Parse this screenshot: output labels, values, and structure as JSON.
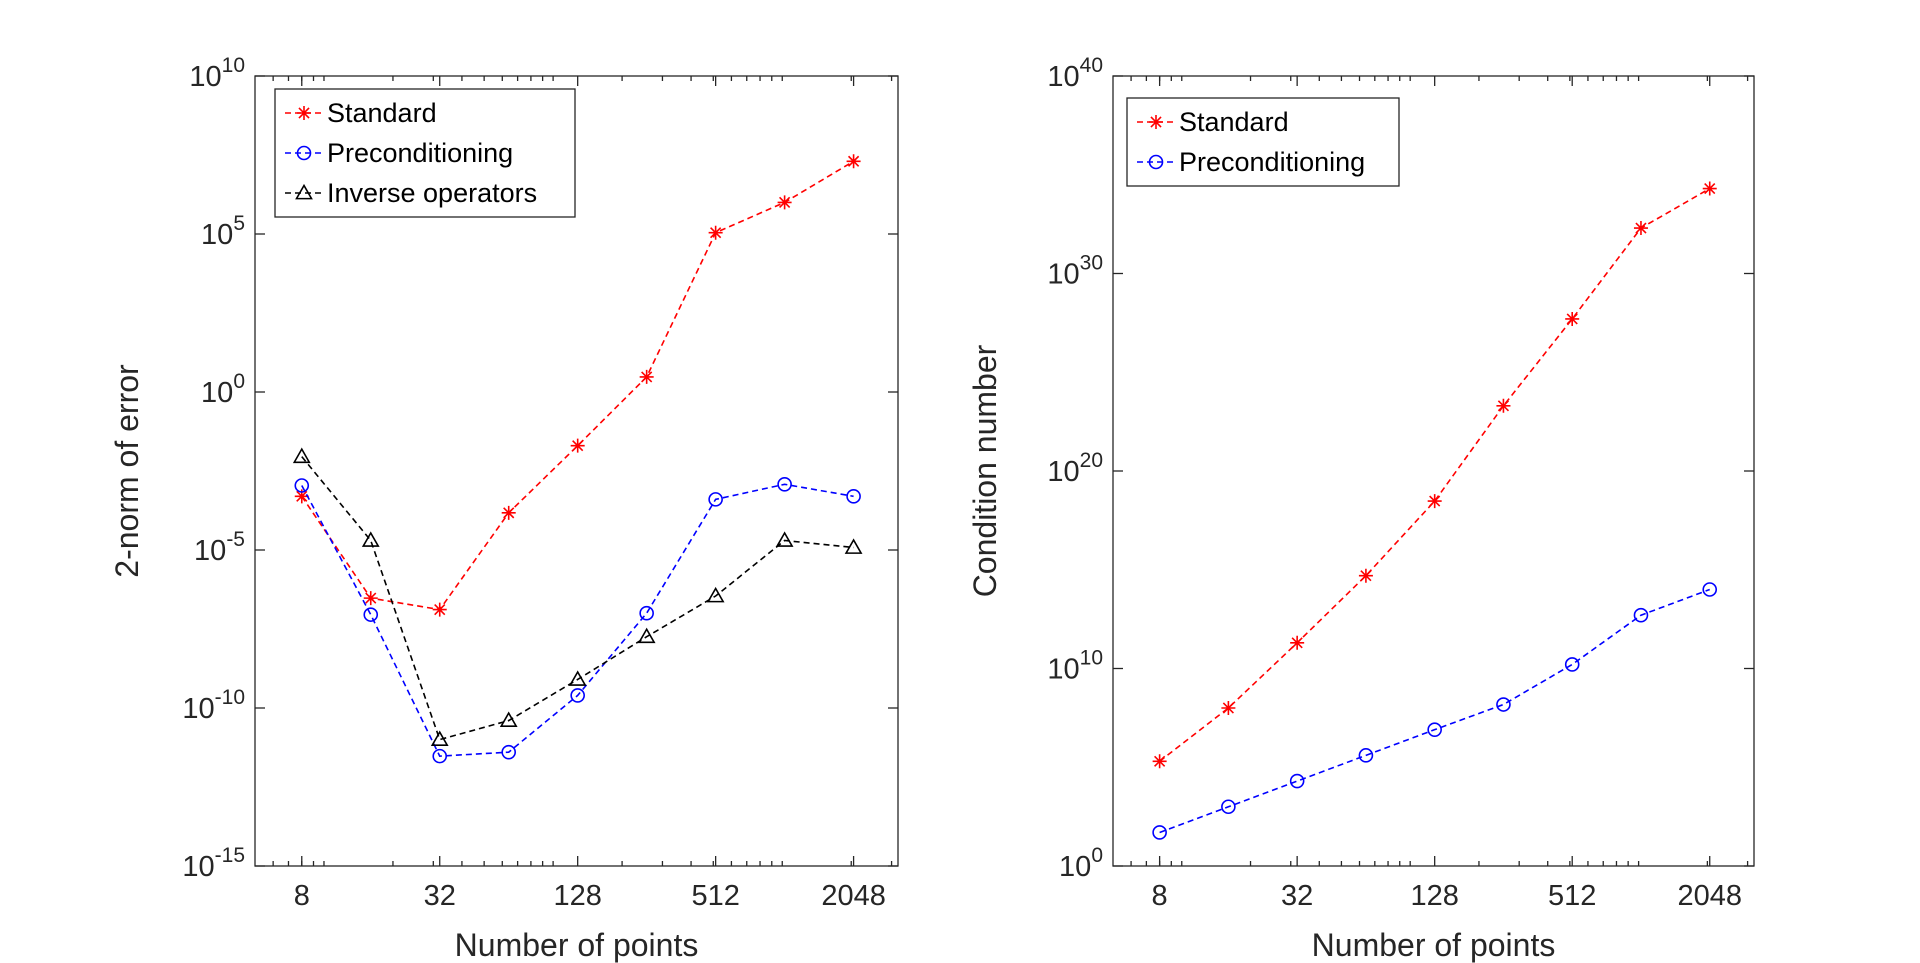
{
  "chart_data": [
    {
      "type": "line",
      "xscale": "log2",
      "yscale": "log10",
      "x": [
        8,
        16,
        32,
        64,
        128,
        256,
        512,
        1024,
        2048
      ],
      "xticks": [
        8,
        32,
        128,
        512,
        2048
      ],
      "xlim": [
        5,
        3200
      ],
      "ylim": [
        1e-15,
        10000000000.0
      ],
      "ytick_exponents": [
        -15,
        -10,
        -5,
        0,
        5,
        10
      ],
      "xlabel": "Number of points",
      "ylabel": "2-norm of error",
      "legend_position": "top-left",
      "series": [
        {
          "name": "Standard",
          "color": "#ff0000",
          "marker": "asterisk",
          "y": [
            0.0005,
            3e-07,
            1.3e-07,
            0.00015,
            0.02,
            3,
            110000.0,
            1000000.0,
            20000000.0
          ]
        },
        {
          "name": "Preconditioning",
          "color": "#0000ff",
          "marker": "circle",
          "y": [
            0.0011,
            9e-08,
            3e-12,
            4e-12,
            2.5e-10,
            1e-07,
            0.0004,
            0.0012,
            0.0005
          ]
        },
        {
          "name": "Inverse operators",
          "color": "#000000",
          "marker": "triangle",
          "y": [
            0.009,
            2e-05,
            1e-11,
            4e-11,
            8e-10,
            1.8e-08,
            3.5e-07,
            2e-05,
            1.2e-05
          ]
        }
      ]
    },
    {
      "type": "line",
      "xscale": "log2",
      "yscale": "log10",
      "x": [
        8,
        16,
        32,
        64,
        128,
        256,
        512,
        1024,
        2048
      ],
      "xticks": [
        8,
        32,
        128,
        512,
        2048
      ],
      "xlim": [
        5,
        3200
      ],
      "ylim": [
        1,
        1e+40
      ],
      "ytick_exponents": [
        0,
        10,
        20,
        30,
        40
      ],
      "xlabel": "Number of points",
      "ylabel": "Condition number",
      "legend_position": "top-left",
      "series": [
        {
          "name": "Standard",
          "color": "#ff0000",
          "marker": "asterisk",
          "y": [
            200000.0,
            100000000.0,
            200000000000.0,
            500000000000000.0,
            3e+18,
            2e+23,
            5e+27,
            2e+32,
            2e+34
          ]
        },
        {
          "name": "Preconditioning",
          "color": "#0000ff",
          "marker": "circle",
          "y": [
            50,
            1000.0,
            20000.0,
            400000.0,
            8000000.0,
            150000000.0,
            16000000000.0,
            5000000000000.0,
            100000000000000.0
          ]
        }
      ]
    }
  ]
}
